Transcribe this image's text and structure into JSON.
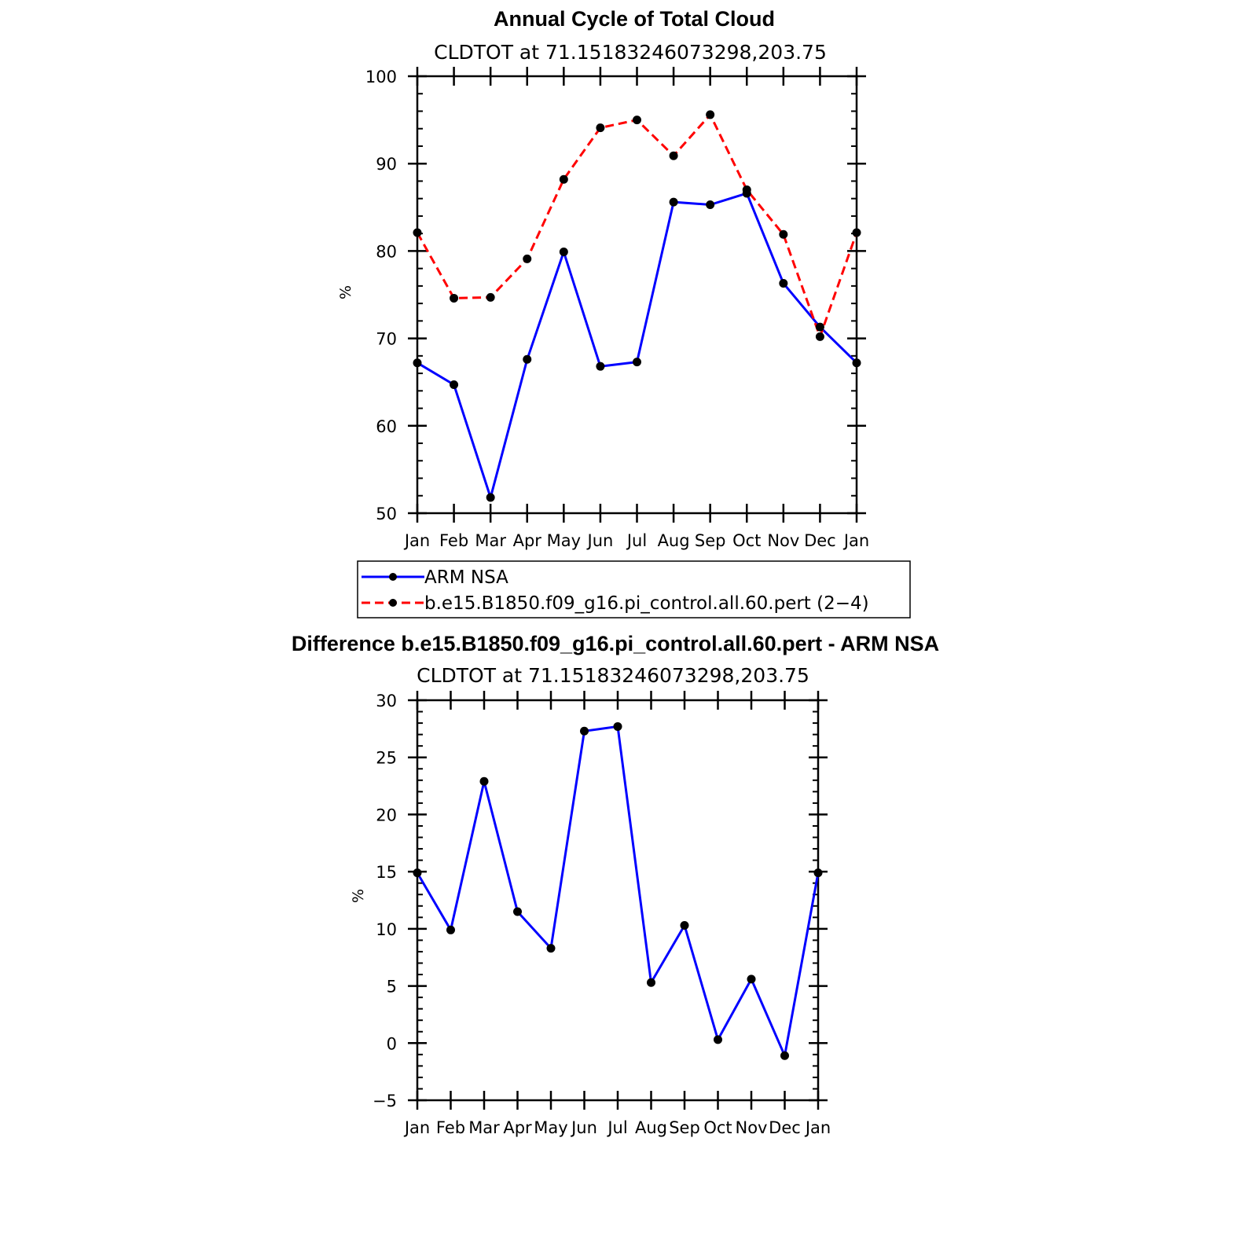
{
  "chart_data": [
    {
      "type": "line",
      "title": "Annual Cycle of Total Cloud",
      "subtitle": "CLDTOT  at  71.15183246073298,203.75",
      "ylabel": "%",
      "xlabel": "",
      "categories": [
        "Jan",
        "Feb",
        "Mar",
        "Apr",
        "May",
        "Jun",
        "Jul",
        "Aug",
        "Sep",
        "Oct",
        "Nov",
        "Dec",
        "Jan"
      ],
      "ylim": [
        50,
        100
      ],
      "yticks": [
        "50",
        "60",
        "70",
        "80",
        "90",
        "100"
      ],
      "series": [
        {
          "name": "ARM NSA",
          "color": "#0000ff",
          "dash": "solid",
          "values": [
            67.2,
            64.7,
            51.8,
            67.6,
            79.9,
            66.8,
            67.3,
            85.6,
            85.3,
            86.6,
            76.3,
            71.3,
            67.2
          ]
        },
        {
          "name": "b.e15.B1850.f09_g16.pi_control.all.60.pert (2−4)",
          "color": "#ff0000",
          "dash": "dashed",
          "values": [
            82.1,
            74.6,
            74.7,
            79.1,
            88.2,
            94.1,
            95.0,
            90.9,
            95.6,
            87.0,
            81.9,
            70.2,
            82.1
          ]
        }
      ],
      "legend_position": "below"
    },
    {
      "type": "line",
      "title": "Difference b.e15.B1850.f09_g16.pi_control.all.60.pert - ARM NSA",
      "subtitle": "CLDTOT  at  71.15183246073298,203.75",
      "ylabel": "%",
      "xlabel": "",
      "categories": [
        "Jan",
        "Feb",
        "Mar",
        "Apr",
        "May",
        "Jun",
        "Jul",
        "Aug",
        "Sep",
        "Oct",
        "Nov",
        "Dec",
        "Jan"
      ],
      "ylim": [
        -5,
        30
      ],
      "yticks": [
        "−5",
        "0",
        "5",
        "10",
        "15",
        "20",
        "25",
        "30"
      ],
      "series": [
        {
          "name": "Difference",
          "color": "#0000ff",
          "dash": "solid",
          "values": [
            14.9,
            9.9,
            22.9,
            11.5,
            8.3,
            27.3,
            27.7,
            5.3,
            10.3,
            0.3,
            5.6,
            -1.1,
            14.9
          ]
        }
      ]
    }
  ]
}
